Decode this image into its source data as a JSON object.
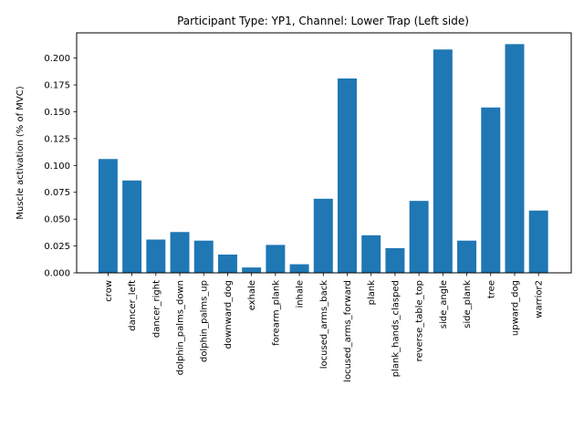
{
  "chart_data": {
    "type": "bar",
    "title": "Participant Type: YP1, Channel: Lower Trap (Left side)",
    "xlabel": "",
    "ylabel": "Muscle activation (% of MVC)",
    "ylim": [
      0,
      0.2235
    ],
    "yticks": [
      "0.000",
      "0.025",
      "0.050",
      "0.075",
      "0.100",
      "0.125",
      "0.150",
      "0.175",
      "0.200"
    ],
    "grid": false,
    "bar_color": "#1f77b4",
    "categories": [
      "crow",
      "dancer_left",
      "dancer_right",
      "dolphin_palms_down",
      "dolphin_palms_up",
      "downward_dog",
      "exhale",
      "forearm_plank",
      "inhale",
      "locused_arms_back",
      "locused_arms_forward",
      "plank",
      "plank_hands_clasped",
      "reverse_table_top",
      "side_angle",
      "side_plank",
      "tree",
      "upward_dog",
      "warrior2"
    ],
    "values": [
      0.106,
      0.086,
      0.031,
      0.038,
      0.03,
      0.017,
      0.005,
      0.026,
      0.008,
      0.069,
      0.181,
      0.035,
      0.023,
      0.067,
      0.208,
      0.03,
      0.154,
      0.213,
      0.058
    ]
  }
}
